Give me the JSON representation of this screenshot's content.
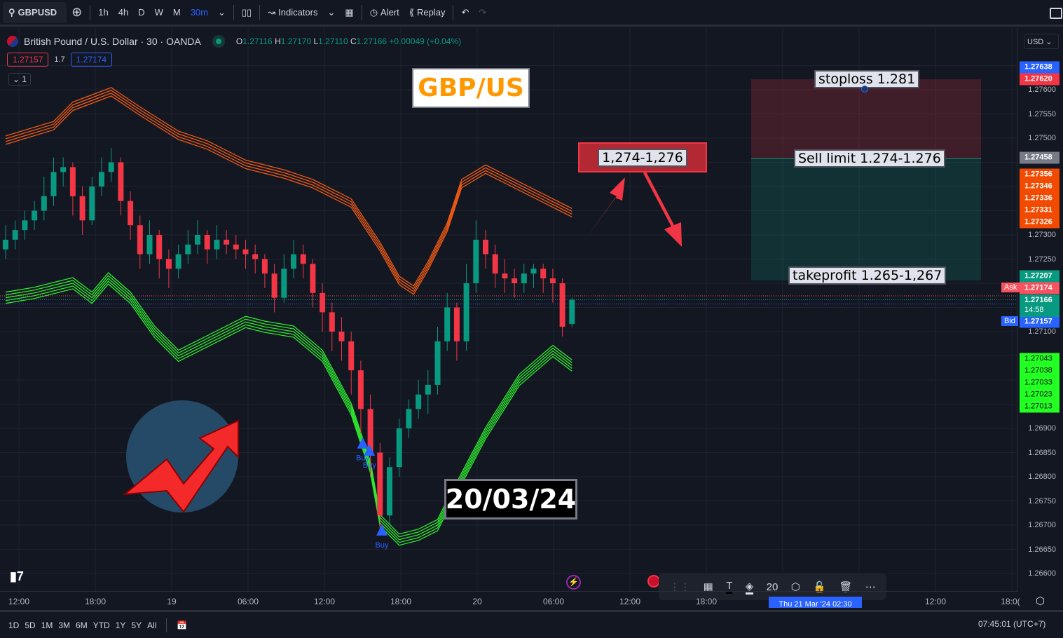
{
  "toolbar": {
    "symbol": "GBPUSD",
    "intervals": [
      "1h",
      "4h",
      "D",
      "W",
      "M"
    ],
    "active_interval": "30m",
    "indicators": "Indicators",
    "alert": "Alert",
    "replay": "Replay"
  },
  "legend": {
    "title": "British Pound / U.S. Dollar · 30 · OANDA",
    "o_label": "O",
    "o": "1.27116",
    "h_label": "H",
    "h": "1.27170",
    "l_label": "L",
    "l": "1.27110",
    "c_label": "C",
    "c": "1.27166",
    "change": "+0.00049 (+0.04%)",
    "sell_price": "1.27157",
    "spread": "1.7",
    "buy_price": "1.27174",
    "collapse": "1"
  },
  "currency": "USD",
  "annotations": {
    "pair": "GBP/US",
    "zone": "1,274-1,276",
    "date": "20/03/24",
    "stoploss": "stoploss 1.281",
    "sell_limit": "Sell limit 1.274-1.276",
    "takeprofit": "takeprofit 1.265-1,267",
    "buy": "Buy"
  },
  "colors": {
    "up": "#089981",
    "down": "#f23645",
    "upper_band": "#f05a14",
    "lower_band": "#2ee82e",
    "accent": "#2962ff",
    "annotation_orange": "#ff9800"
  },
  "price_ticks": [
    "1.27600",
    "1.27550",
    "1.27500",
    "1.27300",
    "1.27250",
    "1.27100",
    "1.26900",
    "1.26850",
    "1.26800",
    "1.26750",
    "1.26700",
    "1.26650",
    "1.26600"
  ],
  "price_tags": [
    {
      "v": "1.27638",
      "bg": "#2962ff",
      "fg": "#fff"
    },
    {
      "v": "1.27620",
      "bg": "#f23645",
      "fg": "#fff"
    },
    {
      "v": "1.27458",
      "bg": "#787b86",
      "fg": "#fff"
    },
    {
      "v": "1.27356",
      "bg": "#f24a00",
      "fg": "#fff"
    },
    {
      "v": "1.27346",
      "bg": "#f24a00",
      "fg": "#fff"
    },
    {
      "v": "1.27336",
      "bg": "#f24a00",
      "fg": "#fff"
    },
    {
      "v": "1.27331",
      "bg": "#f24a00",
      "fg": "#fff"
    },
    {
      "v": "1.27326",
      "bg": "#f24a00",
      "fg": "#fff"
    },
    {
      "v": "1.27207",
      "bg": "#089981",
      "fg": "#fff"
    },
    {
      "v": "1.27174",
      "bg": "#f7525f",
      "fg": "#fff"
    },
    {
      "v": "1.27157",
      "bg": "#2962ff",
      "fg": "#fff"
    },
    {
      "v": "1.27043",
      "bg": "#22ff22",
      "fg": "#111"
    },
    {
      "v": "1.27038",
      "bg": "#22ff22",
      "fg": "#111"
    },
    {
      "v": "1.27033",
      "bg": "#22ff22",
      "fg": "#111"
    },
    {
      "v": "1.27023",
      "bg": "#22ff22",
      "fg": "#111"
    },
    {
      "v": "1.27013",
      "bg": "#22ff22",
      "fg": "#111"
    }
  ],
  "last_price": {
    "v": "1.27166",
    "countdown": "14:58"
  },
  "ask_label": "Ask",
  "bid_label": "Bid",
  "time_labels": [
    "12:00",
    "18:00",
    "19",
    "06:00",
    "12:00",
    "18:00",
    "20",
    "06:00",
    "12:00",
    "18:00",
    "12:00",
    "18:0("
  ],
  "crosshair_time": "Thu 21 Mar '24  02:30",
  "ranges": [
    "1D",
    "5D",
    "1M",
    "3M",
    "6M",
    "YTD",
    "1Y",
    "5Y",
    "All"
  ],
  "clock": "07:45:01 (UTC+7)",
  "drawing_toolbar": {
    "font_size": "20"
  },
  "chart_data": {
    "type": "candlestick",
    "ylim": [
      1.26575,
      1.27775
    ],
    "candles": [
      [
        1.2727,
        1.2732,
        1.2725,
        1.2729
      ],
      [
        1.2729,
        1.2733,
        1.2727,
        1.2731
      ],
      [
        1.2731,
        1.2735,
        1.2729,
        1.2733
      ],
      [
        1.2733,
        1.2737,
        1.2731,
        1.2735
      ],
      [
        1.2735,
        1.2742,
        1.2733,
        1.2738
      ],
      [
        1.2738,
        1.2746,
        1.2736,
        1.2743
      ],
      [
        1.2743,
        1.2746,
        1.274,
        1.2744
      ],
      [
        1.2744,
        1.2745,
        1.2734,
        1.2738
      ],
      [
        1.2738,
        1.274,
        1.273,
        1.2733
      ],
      [
        1.2733,
        1.2742,
        1.2732,
        1.274
      ],
      [
        1.274,
        1.2746,
        1.2738,
        1.2743
      ],
      [
        1.2743,
        1.2748,
        1.2741,
        1.2745
      ],
      [
        1.2745,
        1.2746,
        1.2734,
        1.2737
      ],
      [
        1.2737,
        1.2739,
        1.2729,
        1.2732
      ],
      [
        1.2732,
        1.2734,
        1.2723,
        1.2726
      ],
      [
        1.2726,
        1.2733,
        1.2724,
        1.273
      ],
      [
        1.273,
        1.2731,
        1.2721,
        1.2725
      ],
      [
        1.2725,
        1.2727,
        1.2719,
        1.2723
      ],
      [
        1.2723,
        1.2728,
        1.2721,
        1.2726
      ],
      [
        1.2726,
        1.2731,
        1.2724,
        1.2728
      ],
      [
        1.2728,
        1.2733,
        1.2726,
        1.273
      ],
      [
        1.273,
        1.2731,
        1.2724,
        1.2727
      ],
      [
        1.2727,
        1.2732,
        1.2725,
        1.2729
      ],
      [
        1.2729,
        1.2731,
        1.2726,
        1.2728
      ],
      [
        1.2728,
        1.273,
        1.2725,
        1.2727
      ],
      [
        1.2727,
        1.2729,
        1.2723,
        1.2726
      ],
      [
        1.2726,
        1.2728,
        1.2722,
        1.2725
      ],
      [
        1.2725,
        1.2726,
        1.2719,
        1.2722
      ],
      [
        1.2722,
        1.2724,
        1.2714,
        1.2717
      ],
      [
        1.2717,
        1.2726,
        1.2716,
        1.2723
      ],
      [
        1.2723,
        1.2729,
        1.2721,
        1.2726
      ],
      [
        1.2726,
        1.2728,
        1.2721,
        1.2724
      ],
      [
        1.2724,
        1.2725,
        1.2715,
        1.2718
      ],
      [
        1.2718,
        1.272,
        1.271,
        1.2714
      ],
      [
        1.2714,
        1.2716,
        1.2706,
        1.271
      ],
      [
        1.271,
        1.2713,
        1.2704,
        1.2708
      ],
      [
        1.2708,
        1.271,
        1.2697,
        1.2702
      ],
      [
        1.2702,
        1.2704,
        1.2689,
        1.2694
      ],
      [
        1.2694,
        1.2697,
        1.268,
        1.2685
      ],
      [
        1.2685,
        1.2687,
        1.2668,
        1.2672
      ],
      [
        1.2672,
        1.2684,
        1.267,
        1.2682
      ],
      [
        1.2682,
        1.2692,
        1.268,
        1.269
      ],
      [
        1.269,
        1.2696,
        1.2688,
        1.2694
      ],
      [
        1.2694,
        1.27,
        1.2692,
        1.2697
      ],
      [
        1.2697,
        1.2702,
        1.2693,
        1.2699
      ],
      [
        1.2699,
        1.2711,
        1.2697,
        1.2708
      ],
      [
        1.2708,
        1.2718,
        1.2706,
        1.2715
      ],
      [
        1.2715,
        1.2716,
        1.2704,
        1.2708
      ],
      [
        1.2708,
        1.2724,
        1.2706,
        1.272
      ],
      [
        1.272,
        1.2733,
        1.2718,
        1.2729
      ],
      [
        1.2729,
        1.2731,
        1.2723,
        1.2726
      ],
      [
        1.2726,
        1.2728,
        1.2719,
        1.2722
      ],
      [
        1.2722,
        1.2725,
        1.2718,
        1.2721
      ],
      [
        1.2721,
        1.2723,
        1.2717,
        1.272
      ],
      [
        1.272,
        1.2724,
        1.2718,
        1.2722
      ],
      [
        1.2722,
        1.2724,
        1.2719,
        1.2723
      ],
      [
        1.2723,
        1.2724,
        1.2718,
        1.2721
      ],
      [
        1.2721,
        1.2723,
        1.2716,
        1.272
      ],
      [
        1.272,
        1.2721,
        1.2709,
        1.2711
      ],
      [
        1.27116,
        1.2717,
        1.2711,
        1.27166
      ]
    ],
    "upper_band": [
      [
        0,
        1.2749
      ],
      [
        5,
        1.2752
      ],
      [
        7,
        1.2756
      ],
      [
        11,
        1.2759
      ],
      [
        14,
        1.2755
      ],
      [
        18,
        1.275
      ],
      [
        21,
        1.2748
      ],
      [
        25,
        1.2744
      ],
      [
        29,
        1.2742
      ],
      [
        32,
        1.274
      ],
      [
        36,
        1.2736
      ],
      [
        39,
        1.2727
      ],
      [
        41,
        1.272
      ],
      [
        42.5,
        1.2718
      ],
      [
        44,
        1.2723
      ],
      [
        46,
        1.2731
      ],
      [
        47.5,
        1.274
      ],
      [
        50,
        1.2743
      ],
      [
        52,
        1.2741
      ],
      [
        55,
        1.2738
      ],
      [
        58,
        1.2735
      ],
      [
        59,
        1.2734
      ]
    ],
    "lower_band": [
      [
        0,
        1.2717
      ],
      [
        3,
        1.2718
      ],
      [
        7,
        1.272
      ],
      [
        9,
        1.2717
      ],
      [
        10.7,
        1.2721
      ],
      [
        13,
        1.2717
      ],
      [
        15.5,
        1.271
      ],
      [
        18,
        1.2705
      ],
      [
        21,
        1.2708
      ],
      [
        25,
        1.2712
      ],
      [
        27,
        1.2711
      ],
      [
        30,
        1.271
      ],
      [
        33,
        1.2705
      ],
      [
        36,
        1.2694
      ],
      [
        38,
        1.2682
      ],
      [
        39,
        1.2671
      ],
      [
        41,
        1.2667
      ],
      [
        43,
        1.2668
      ],
      [
        45,
        1.267
      ],
      [
        46,
        1.2674
      ],
      [
        50,
        1.2689
      ],
      [
        53.5,
        1.27
      ],
      [
        57,
        1.2706
      ],
      [
        59,
        1.2703
      ]
    ],
    "buy_signals": [
      [
        37.2,
        1.2687
      ],
      [
        37.9,
        1.26855
      ],
      [
        39.2,
        1.2669
      ]
    ],
    "ask": 1.27174,
    "last": 1.27166,
    "bid": 1.27157
  }
}
